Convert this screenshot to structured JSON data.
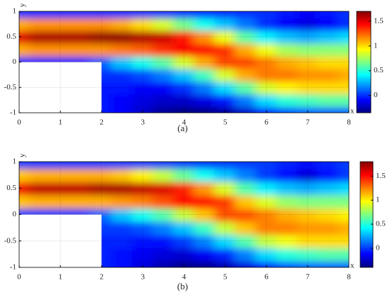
{
  "chart_data": [
    {
      "type": "heatmap",
      "caption": "(a)",
      "x_label": "x",
      "y_label": "y",
      "x": [
        0,
        0.5,
        1,
        1.5,
        2,
        2.5,
        3,
        3.5,
        4,
        4.5,
        5,
        5.5,
        6,
        6.5,
        7,
        7.5,
        8
      ],
      "y": [
        -1,
        -0.75,
        -0.5,
        -0.25,
        0,
        0.25,
        0.5,
        0.75,
        1
      ],
      "z": [
        [
          null,
          null,
          null,
          null,
          0,
          1.1,
          1.5,
          1.1,
          0
        ],
        [
          null,
          null,
          null,
          null,
          0,
          1.15,
          1.6,
          1.15,
          0
        ],
        [
          null,
          null,
          null,
          null,
          0,
          1.15,
          1.6,
          1.15,
          0
        ],
        [
          null,
          null,
          null,
          null,
          0,
          1.15,
          1.6,
          1.15,
          0
        ],
        [
          -0.05,
          -0.05,
          -0.05,
          0,
          0.1,
          1.15,
          1.65,
          1.15,
          0
        ],
        [
          -0.1,
          -0.1,
          -0.05,
          0,
          0.3,
          1.2,
          1.65,
          1.1,
          0
        ],
        [
          -0.2,
          -0.15,
          -0.1,
          0.05,
          0.45,
          1.25,
          1.6,
          1.0,
          0
        ],
        [
          -0.3,
          -0.2,
          -0.1,
          0.15,
          0.6,
          1.35,
          1.55,
          0.85,
          0
        ],
        [
          -0.35,
          -0.2,
          0,
          0.3,
          0.85,
          1.45,
          1.4,
          0.65,
          0
        ],
        [
          -0.35,
          -0.15,
          0.15,
          0.55,
          1.1,
          1.45,
          1.15,
          0.45,
          0
        ],
        [
          -0.3,
          -0.05,
          0.35,
          0.85,
          1.3,
          1.35,
          0.9,
          0.3,
          0
        ],
        [
          -0.2,
          0.15,
          0.6,
          1.1,
          1.3,
          1.1,
          0.6,
          0.15,
          0
        ],
        [
          -0.05,
          0.35,
          0.85,
          1.2,
          1.2,
          0.9,
          0.4,
          0,
          0
        ],
        [
          0.05,
          0.5,
          0.95,
          1.2,
          1.1,
          0.75,
          0.3,
          -0.1,
          -0.05
        ],
        [
          0.1,
          0.55,
          1.0,
          1.15,
          1.05,
          0.7,
          0.25,
          -0.15,
          -0.1
        ],
        [
          0.1,
          0.6,
          1.0,
          1.15,
          1.0,
          0.7,
          0.3,
          -0.1,
          -0.05
        ],
        [
          0.1,
          0.6,
          1.0,
          1.1,
          1.0,
          0.7,
          0.35,
          0,
          0
        ]
      ],
      "xlim": [
        0,
        8
      ],
      "ylim": [
        -1,
        1
      ],
      "xticks": [
        0,
        1,
        2,
        3,
        4,
        5,
        6,
        7,
        8
      ],
      "yticks": [
        -1,
        -0.5,
        0,
        0.5,
        1
      ],
      "zlim": [
        -0.35,
        1.7
      ],
      "zticks": [
        0,
        0.5,
        1,
        1.5
      ],
      "colormap": "jet"
    },
    {
      "type": "heatmap",
      "caption": "(b)",
      "x_label": "x",
      "y_label": "y",
      "x": [
        0,
        0.5,
        1,
        1.5,
        2,
        2.5,
        3,
        3.5,
        4,
        4.5,
        5,
        5.5,
        6,
        6.5,
        7,
        7.5,
        8
      ],
      "y": [
        -1,
        -0.75,
        -0.5,
        -0.25,
        0,
        0.25,
        0.5,
        0.75,
        1
      ],
      "z": [
        [
          null,
          null,
          null,
          null,
          0,
          1.1,
          1.55,
          1.1,
          0
        ],
        [
          null,
          null,
          null,
          null,
          0,
          1.15,
          1.65,
          1.15,
          0
        ],
        [
          null,
          null,
          null,
          null,
          0,
          1.15,
          1.65,
          1.15,
          0
        ],
        [
          null,
          null,
          null,
          null,
          0,
          1.15,
          1.65,
          1.15,
          0
        ],
        [
          -0.05,
          -0.05,
          -0.05,
          0,
          0.1,
          1.15,
          1.7,
          1.15,
          0
        ],
        [
          -0.1,
          -0.1,
          -0.05,
          0,
          0.3,
          1.2,
          1.7,
          1.1,
          0
        ],
        [
          -0.2,
          -0.15,
          -0.1,
          0.05,
          0.45,
          1.25,
          1.65,
          1.0,
          0
        ],
        [
          -0.3,
          -0.2,
          -0.1,
          0.15,
          0.6,
          1.35,
          1.6,
          0.85,
          0
        ],
        [
          -0.38,
          -0.22,
          0,
          0.3,
          0.85,
          1.5,
          1.45,
          0.65,
          0
        ],
        [
          -0.38,
          -0.15,
          0.15,
          0.55,
          1.1,
          1.5,
          1.2,
          0.45,
          0
        ],
        [
          -0.3,
          -0.05,
          0.35,
          0.85,
          1.35,
          1.4,
          0.9,
          0.3,
          0
        ],
        [
          -0.2,
          0.15,
          0.6,
          1.1,
          1.35,
          1.1,
          0.6,
          0.15,
          0
        ],
        [
          -0.05,
          0.35,
          0.85,
          1.25,
          1.25,
          0.9,
          0.4,
          0,
          0
        ],
        [
          0.05,
          0.5,
          0.95,
          1.25,
          1.15,
          0.75,
          0.3,
          -0.1,
          -0.05
        ],
        [
          0.1,
          0.55,
          1.05,
          1.2,
          1.1,
          0.7,
          0.25,
          -0.2,
          -0.1
        ],
        [
          0.1,
          0.6,
          1.05,
          1.2,
          1.05,
          0.7,
          0.3,
          -0.1,
          -0.05
        ],
        [
          0.1,
          0.6,
          1.05,
          1.15,
          1.0,
          0.7,
          0.35,
          0,
          0
        ]
      ],
      "xlim": [
        0,
        8
      ],
      "ylim": [
        -1,
        1
      ],
      "xticks": [
        0,
        1,
        2,
        3,
        4,
        5,
        6,
        7,
        8
      ],
      "yticks": [
        -1,
        -0.5,
        0,
        0.5,
        1
      ],
      "zlim": [
        -0.4,
        1.8
      ],
      "zticks": [
        0,
        0.5,
        1,
        1.5
      ],
      "colormap": "jet"
    }
  ]
}
